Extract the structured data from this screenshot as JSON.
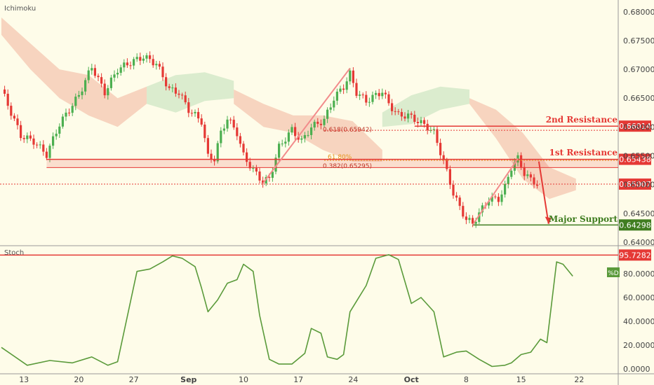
{
  "chart_data": [
    {
      "type": "line",
      "title": "Ichimoku",
      "x_ticks": [
        "13",
        "20",
        "27",
        "Sep",
        "10",
        "17",
        "24",
        "Oct",
        "8",
        "15",
        "22"
      ],
      "y_ticks": [
        "0.68000",
        "0.67500",
        "0.67000",
        "0.66500",
        "0.66000",
        "0.65500",
        "0.65000",
        "0.64500",
        "0.64000"
      ],
      "ylim": [
        0.6395,
        0.6818
      ],
      "price_tags": [
        {
          "value": 0.66014,
          "label": "0.66014",
          "color": "#e53935"
        },
        {
          "value": 0.65438,
          "label": "0.65438",
          "color": "#e53935"
        },
        {
          "value": 0.65007,
          "label": "0.65007",
          "color": "#e53935"
        },
        {
          "value": 0.64298,
          "label": "0.64298",
          "color": "#3f7d20"
        }
      ],
      "annotations": {
        "second_resistance": "2nd Resistance",
        "first_resistance": "1st Resistance",
        "major_support": "Major Support",
        "fib_618": "0.618(0.65942)",
        "fib_382": "0.382(0.65295)",
        "fib_61": "61.80%"
      },
      "colors": {
        "up": "#4caf50",
        "down": "#e53935",
        "resistance": "#e53935",
        "support": "#3f7d20",
        "cloud_bear": "#f4c7b0",
        "cloud_bull": "#cfe7c4"
      }
    },
    {
      "type": "line",
      "title": "Stoch",
      "y_ticks": [
        "0.0000",
        "20.0000",
        "40.0000",
        "60.0000",
        "80.0000"
      ],
      "ylim": [
        -3,
        103
      ],
      "level": {
        "value": 95.7282,
        "label": "95.7282"
      },
      "legend_badge": "%D",
      "series": [
        {
          "name": "%D",
          "color": "#5a9a3a",
          "x": [
            0,
            8,
            15,
            22,
            28,
            33,
            36,
            42,
            46,
            50,
            53,
            56,
            60,
            62,
            64,
            67,
            70,
            73,
            75,
            78,
            80,
            83,
            86,
            90,
            94,
            96,
            99,
            101,
            104,
            106,
            108,
            113,
            116,
            120,
            123,
            127,
            130,
            134,
            137,
            141,
            144,
            148,
            152,
            156,
            158,
            161,
            164,
            167,
            169,
            172,
            174,
            177
          ],
          "values": [
            18,
            3,
            7,
            5,
            10,
            3,
            6,
            82,
            84,
            90,
            95,
            93,
            86,
            68,
            48,
            58,
            72,
            75,
            88,
            82,
            45,
            8,
            4,
            4,
            13,
            34,
            30,
            10,
            8,
            12,
            48,
            70,
            93,
            96,
            92,
            55,
            60,
            48,
            10,
            14,
            15,
            8,
            2,
            3,
            5,
            12,
            14,
            25,
            22,
            90,
            88,
            78
          ]
        }
      ]
    }
  ]
}
